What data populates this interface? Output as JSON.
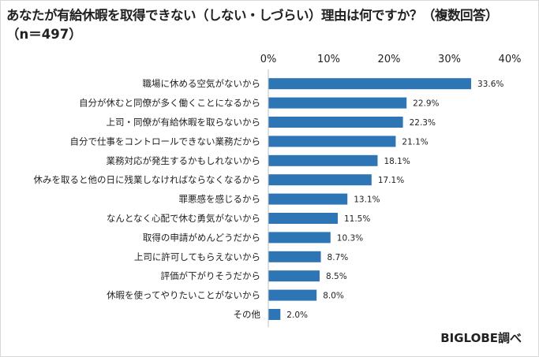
{
  "title_line1": "あなたが有給休暇を取得できない（しない・しづらい）理由は何ですか？（複数回答）",
  "title_line2": "（n＝497）",
  "source": "BIGLOBE調べ",
  "colors": {
    "bar": "#2e75b6",
    "axis": "#bfbfbf"
  },
  "chart_data": {
    "type": "bar",
    "orientation": "horizontal",
    "categories": [
      "職場に休める空気がないから",
      "自分が休むと同僚が多く働くことになるから",
      "上司・同僚が有給休暇を取らないから",
      "自分で仕事をコントロールできない業務だから",
      "業務対応が発生するかもしれないから",
      "休みを取ると他の日に残業しなければならなくなるから",
      "罪悪感を感じるから",
      "なんとなく心配で休む勇気がないから",
      "取得の申請がめんどうだから",
      "上司に許可してもらえないから",
      "評価が下がりそうだから",
      "休暇を使ってやりたいことがないから",
      "その他"
    ],
    "values": [
      33.6,
      22.9,
      22.3,
      21.1,
      18.1,
      17.1,
      13.1,
      11.5,
      10.3,
      8.7,
      8.5,
      8.0,
      2.0
    ],
    "value_labels": [
      "33.6%",
      "22.9%",
      "22.3%",
      "21.1%",
      "18.1%",
      "17.1%",
      "13.1%",
      "11.5%",
      "10.3%",
      "8.7%",
      "8.5%",
      "8.0%",
      "2.0%"
    ],
    "xlim": [
      0,
      40
    ],
    "ticks": [
      "0%",
      "10%",
      "20%",
      "30%",
      "40%"
    ],
    "xlabel": "",
    "ylabel": "",
    "grid": false,
    "legend": "none"
  }
}
